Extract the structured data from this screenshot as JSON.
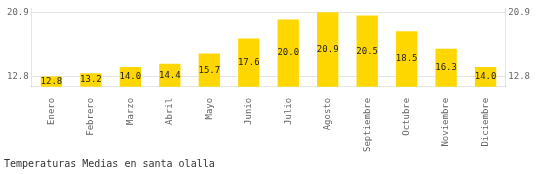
{
  "chart_data": {
    "type": "bar",
    "title": "Temperaturas Medias en santa olalla",
    "categories": [
      "Enero",
      "Febrero",
      "Marzo",
      "Abril",
      "Mayo",
      "Junio",
      "Julio",
      "Agosto",
      "Septiembre",
      "Octubre",
      "Noviembre",
      "Diciembre"
    ],
    "values": [
      12.8,
      13.2,
      14.0,
      14.4,
      15.7,
      17.6,
      20.0,
      20.9,
      20.5,
      18.5,
      16.3,
      14.0
    ],
    "value_labels": [
      "12.8",
      "13.2",
      "14.0",
      "14.4",
      "15.7",
      "17.6",
      "20.0",
      "20.9",
      "20.5",
      "18.5",
      "16.3",
      "14.0"
    ],
    "color": "#FFD700",
    "ylim": [
      11.5,
      21.4
    ],
    "yticks": [
      12.8,
      20.9
    ],
    "y2lim": [
      11.5,
      21.4
    ],
    "y2ticks": [
      12.8,
      20.9
    ],
    "grid": true,
    "data_labels": true
  }
}
